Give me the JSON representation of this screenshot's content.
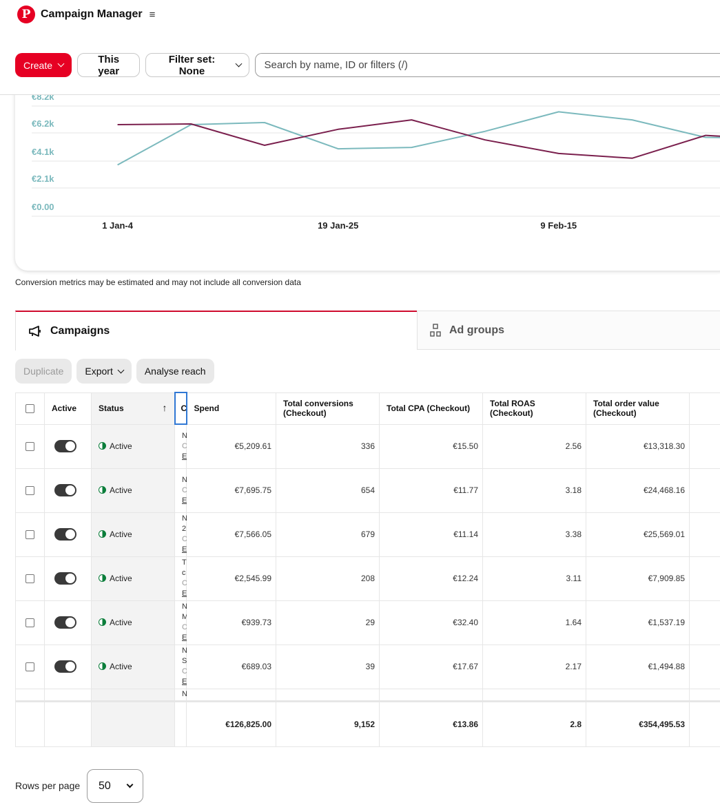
{
  "app": {
    "title": "Campaign Manager",
    "logo_letter": "P",
    "menu_icon": "hamburger-icon"
  },
  "toolbar": {
    "create_label": "Create",
    "date_label": "This year",
    "filter_label": "Filter set: None",
    "search_placeholder": "Search by name, ID or filters (/)"
  },
  "colors": {
    "brand": "#e60023",
    "series_teal": "#7bb9bd",
    "series_maroon": "#7a1f4d",
    "axis_label": "#7bb9bd"
  },
  "chart_data": {
    "type": "line",
    "y_tick_labels": [
      "€0.00",
      "€2.1k",
      "€4.1k",
      "€6.2k",
      "€8.2k"
    ],
    "y_ticks": [
      0,
      2100,
      4100,
      6200,
      8200
    ],
    "ylim": [
      0,
      8200
    ],
    "x_tick_labels": [
      "1 Jan-4",
      "19 Jan-25",
      "9 Feb-15"
    ],
    "x_tick_index": [
      0,
      3,
      6
    ],
    "series": [
      {
        "color": "#7bb9bd",
        "values": [
          3100,
          6100,
          6250,
          4300,
          4400,
          5600,
          7050,
          6450,
          5150,
          5100
        ]
      },
      {
        "color": "#7a1f4d",
        "values": [
          6100,
          6150,
          4560,
          5750,
          6450,
          4960,
          3950,
          3600,
          5300,
          5000
        ]
      }
    ],
    "grid": true
  },
  "disclaimer": "Conversion metrics may be estimated and may not include all conversion data",
  "tabs": [
    {
      "label": "Campaigns",
      "icon": "megaphone-icon"
    },
    {
      "label": "Ad groups",
      "icon": "ad-groups-icon"
    }
  ],
  "actions": {
    "duplicate": "Duplicate",
    "export": "Export",
    "analyse": "Analyse reach"
  },
  "table": {
    "headers": {
      "active": "Active",
      "status": "Status",
      "name_clip": "C",
      "spend": "Spend",
      "conversions": "Total conversions (Checkout)",
      "cpa": "Total CPA (Checkout)",
      "roas": "Total ROAS (Checkout)",
      "order_value": "Total order value (Checkout)"
    },
    "rows": [
      {
        "status": "Active",
        "name_clip": [
          "N",
          "C",
          "E"
        ],
        "spend": "€5,209.61",
        "conversions": "336",
        "cpa": "€15.50",
        "roas": "2.56",
        "order_value": "€13,318.30"
      },
      {
        "status": "Active",
        "name_clip": [
          "N",
          "C",
          "E"
        ],
        "spend": "€7,695.75",
        "conversions": "654",
        "cpa": "€11.77",
        "roas": "3.18",
        "order_value": "€24,468.16"
      },
      {
        "status": "Active",
        "name_clip": [
          "N",
          "2",
          "C",
          "E"
        ],
        "spend": "€7,566.05",
        "conversions": "679",
        "cpa": "€11.14",
        "roas": "3.38",
        "order_value": "€25,569.01"
      },
      {
        "status": "Active",
        "name_clip": [
          "T",
          "c",
          "C",
          "E"
        ],
        "spend": "€2,545.99",
        "conversions": "208",
        "cpa": "€12.24",
        "roas": "3.11",
        "order_value": "€7,909.85"
      },
      {
        "status": "Active",
        "name_clip": [
          "N",
          "M",
          "C",
          "E"
        ],
        "spend": "€939.73",
        "conversions": "29",
        "cpa": "€32.40",
        "roas": "1.64",
        "order_value": "€1,537.19"
      },
      {
        "status": "Active",
        "name_clip": [
          "N",
          "S",
          "C",
          "E"
        ],
        "spend": "€689.03",
        "conversions": "39",
        "cpa": "€17.67",
        "roas": "2.17",
        "order_value": "€1,494.88"
      }
    ],
    "partial_row_clip": "N",
    "totals": {
      "spend": "€126,825.00",
      "conversions": "9,152",
      "cpa": "€13.86",
      "roas": "2.8",
      "order_value": "€354,495.53"
    }
  },
  "pagination": {
    "label": "Rows per page",
    "value": "50"
  }
}
